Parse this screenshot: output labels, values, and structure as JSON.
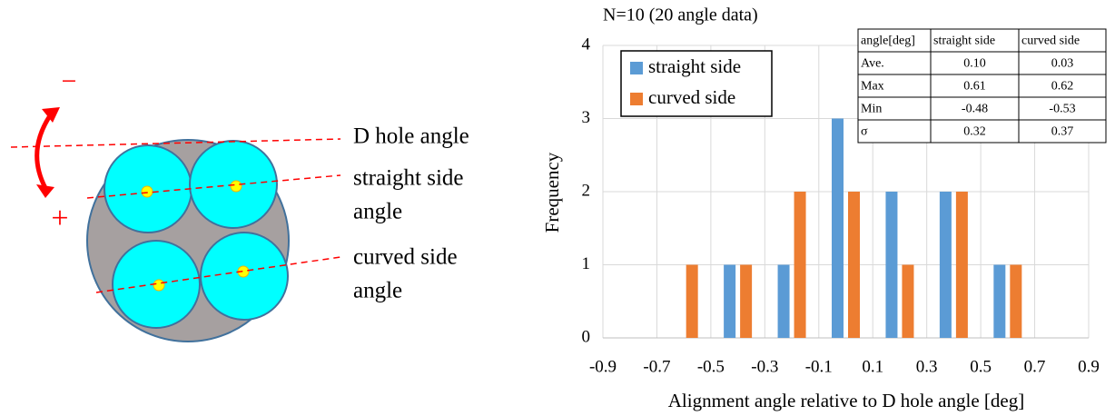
{
  "diagram": {
    "labels": {
      "minus": "−",
      "plus": "+",
      "d_hole": "D hole angle",
      "straight": [
        "straight side",
        "angle"
      ],
      "curved": [
        "curved side",
        "angle"
      ]
    }
  },
  "chart_data": {
    "type": "bar",
    "title": "N=10 (20 angle data)",
    "x_label": "Alignment angle relative to D hole angle [deg]",
    "y_label": "Frequency",
    "x": [
      -0.8,
      -0.6,
      -0.4,
      -0.2,
      0,
      0.2,
      0.4,
      0.6,
      0.8
    ],
    "series": [
      {
        "name": "straight side",
        "color": "#5b9bd5",
        "values": [
          0,
          0,
          1,
          1,
          3,
          2,
          2,
          1,
          0
        ]
      },
      {
        "name": "curved side",
        "color": "#ed7d31",
        "values": [
          0,
          1,
          1,
          2,
          2,
          1,
          2,
          1,
          0
        ]
      }
    ],
    "xlim": [
      -0.9,
      0.9
    ],
    "xticks": [
      -0.9,
      -0.7,
      -0.5,
      -0.3,
      -0.1,
      0.1,
      0.3,
      0.5,
      0.7,
      0.9
    ],
    "ylim": [
      0,
      4
    ],
    "yticks": [
      0,
      1,
      2,
      3,
      4
    ],
    "grid": true,
    "legend": "top-left"
  },
  "stats_table": {
    "header": [
      "angle[deg]",
      "straight side",
      "curved side"
    ],
    "rows": [
      [
        "Ave.",
        "0.10",
        "0.03"
      ],
      [
        "Max",
        "0.61",
        "0.62"
      ],
      [
        "Min",
        "-0.48",
        "-0.53"
      ],
      [
        "σ",
        "0.32",
        "0.37"
      ]
    ]
  }
}
